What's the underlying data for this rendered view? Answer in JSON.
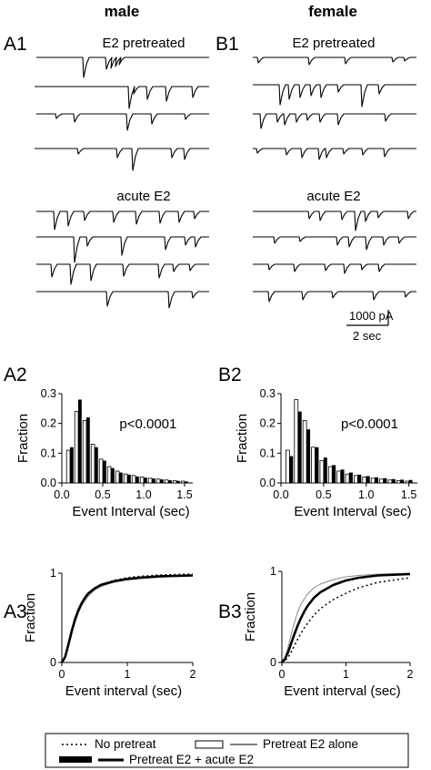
{
  "columns": {
    "left": "male",
    "right": "female"
  },
  "panels": {
    "A1": "A1",
    "B1": "B1",
    "A2": "A2",
    "B2": "B2",
    "A3": "A3",
    "B3": "B3"
  },
  "conditions": {
    "pretreated": "E2 pretreated",
    "acute": "acute E2"
  },
  "scale_bar": {
    "current": "1000 pA",
    "time": "2 sec"
  },
  "colors": {
    "ink": "#000000",
    "open_bar": "#ffffff",
    "filled_bar": "#000000",
    "gray_line": "#8a8a8a"
  },
  "chart_data": [
    {
      "panel": "A2",
      "type": "bar",
      "xlabel": "Event Interval (sec)",
      "ylabel": "Fraction",
      "xlim": [
        0,
        1.6
      ],
      "ylim": [
        0,
        0.3
      ],
      "xticks": [
        "0.0",
        "0.5",
        "1.0",
        "1.5"
      ],
      "yticks": [
        "0.0",
        "0.1",
        "0.2",
        "0.3"
      ],
      "annotation": "p<0.0001",
      "x": [
        0.1,
        0.2,
        0.3,
        0.4,
        0.5,
        0.6,
        0.7,
        0.8,
        0.9,
        1.0,
        1.1,
        1.2,
        1.3,
        1.4,
        1.5
      ],
      "series": [
        {
          "style": "open",
          "values": [
            0.11,
            0.24,
            0.21,
            0.13,
            0.08,
            0.055,
            0.04,
            0.03,
            0.025,
            0.02,
            0.016,
            0.013,
            0.01,
            0.008,
            0.006
          ]
        },
        {
          "style": "filled",
          "values": [
            0.12,
            0.28,
            0.22,
            0.12,
            0.075,
            0.05,
            0.035,
            0.028,
            0.022,
            0.018,
            0.015,
            0.012,
            0.009,
            0.007,
            0.005
          ]
        }
      ]
    },
    {
      "panel": "B2",
      "type": "bar",
      "xlabel": "Event Interval (sec)",
      "ylabel": "Fraction",
      "xlim": [
        0,
        1.6
      ],
      "ylim": [
        0,
        0.3
      ],
      "xticks": [
        "0.0",
        "0.5",
        "1.0",
        "1.5"
      ],
      "yticks": [
        "0.0",
        "0.1",
        "0.2",
        "0.3"
      ],
      "annotation": "p<0.0001",
      "x": [
        0.1,
        0.2,
        0.3,
        0.4,
        0.5,
        0.6,
        0.7,
        0.8,
        0.9,
        1.0,
        1.1,
        1.2,
        1.3,
        1.4,
        1.5
      ],
      "series": [
        {
          "style": "open",
          "values": [
            0.11,
            0.28,
            0.21,
            0.12,
            0.075,
            0.055,
            0.04,
            0.03,
            0.025,
            0.02,
            0.016,
            0.013,
            0.01,
            0.008,
            0.006
          ]
        },
        {
          "style": "filled",
          "values": [
            0.09,
            0.24,
            0.18,
            0.12,
            0.085,
            0.06,
            0.045,
            0.035,
            0.028,
            0.023,
            0.019,
            0.016,
            0.013,
            0.011,
            0.01
          ]
        }
      ]
    },
    {
      "panel": "A3",
      "type": "line",
      "xlabel": "Event interval (sec)",
      "ylabel": "Fraction",
      "xlim": [
        0,
        2
      ],
      "ylim": [
        0,
        1
      ],
      "xticks": [
        "0",
        "1",
        "2"
      ],
      "yticks": [
        "0",
        "1"
      ],
      "x": [
        0,
        0.05,
        0.1,
        0.15,
        0.2,
        0.25,
        0.3,
        0.35,
        0.4,
        0.5,
        0.6,
        0.8,
        1.0,
        1.2,
        1.5,
        2.0
      ],
      "series": [
        {
          "name": "No pretreat",
          "style": "dotted",
          "values": [
            0,
            0.06,
            0.19,
            0.34,
            0.47,
            0.57,
            0.65,
            0.71,
            0.76,
            0.83,
            0.87,
            0.92,
            0.95,
            0.965,
            0.98,
            0.99
          ]
        },
        {
          "name": "Pretreat E2 alone",
          "style": "thin-gray",
          "values": [
            0,
            0.05,
            0.17,
            0.31,
            0.44,
            0.55,
            0.63,
            0.69,
            0.74,
            0.81,
            0.85,
            0.9,
            0.925,
            0.94,
            0.955,
            0.97
          ]
        },
        {
          "name": "Pretreat E2 + acute E2",
          "style": "thick",
          "values": [
            0,
            0.06,
            0.2,
            0.35,
            0.48,
            0.58,
            0.66,
            0.72,
            0.77,
            0.83,
            0.87,
            0.91,
            0.935,
            0.95,
            0.965,
            0.975
          ]
        }
      ]
    },
    {
      "panel": "B3",
      "type": "line",
      "xlabel": "Event interval (sec)",
      "ylabel": "Fraction",
      "xlim": [
        0,
        2
      ],
      "ylim": [
        0,
        1
      ],
      "xticks": [
        "0",
        "1",
        "2"
      ],
      "yticks": [
        "0",
        "1"
      ],
      "x": [
        0,
        0.05,
        0.1,
        0.15,
        0.2,
        0.25,
        0.3,
        0.35,
        0.4,
        0.5,
        0.6,
        0.8,
        1.0,
        1.2,
        1.5,
        2.0
      ],
      "series": [
        {
          "name": "No pretreat",
          "style": "dotted",
          "values": [
            0,
            0.02,
            0.06,
            0.12,
            0.19,
            0.26,
            0.32,
            0.38,
            0.43,
            0.52,
            0.59,
            0.69,
            0.76,
            0.82,
            0.88,
            0.93
          ]
        },
        {
          "name": "Pretreat E2 alone",
          "style": "thin-gray",
          "values": [
            0,
            0.05,
            0.18,
            0.32,
            0.45,
            0.56,
            0.64,
            0.7,
            0.75,
            0.82,
            0.86,
            0.91,
            0.94,
            0.955,
            0.97,
            0.98
          ]
        },
        {
          "name": "Pretreat E2 + acute E2",
          "style": "thick",
          "values": [
            0,
            0.04,
            0.12,
            0.22,
            0.32,
            0.41,
            0.49,
            0.56,
            0.62,
            0.71,
            0.77,
            0.85,
            0.9,
            0.93,
            0.955,
            0.97
          ]
        }
      ]
    }
  ],
  "legend": {
    "no_pretreat": "No pretreat",
    "pretreat_alone": "Pretreat E2 alone",
    "pretreat_acute": "Pretreat E2 + acute E2"
  }
}
